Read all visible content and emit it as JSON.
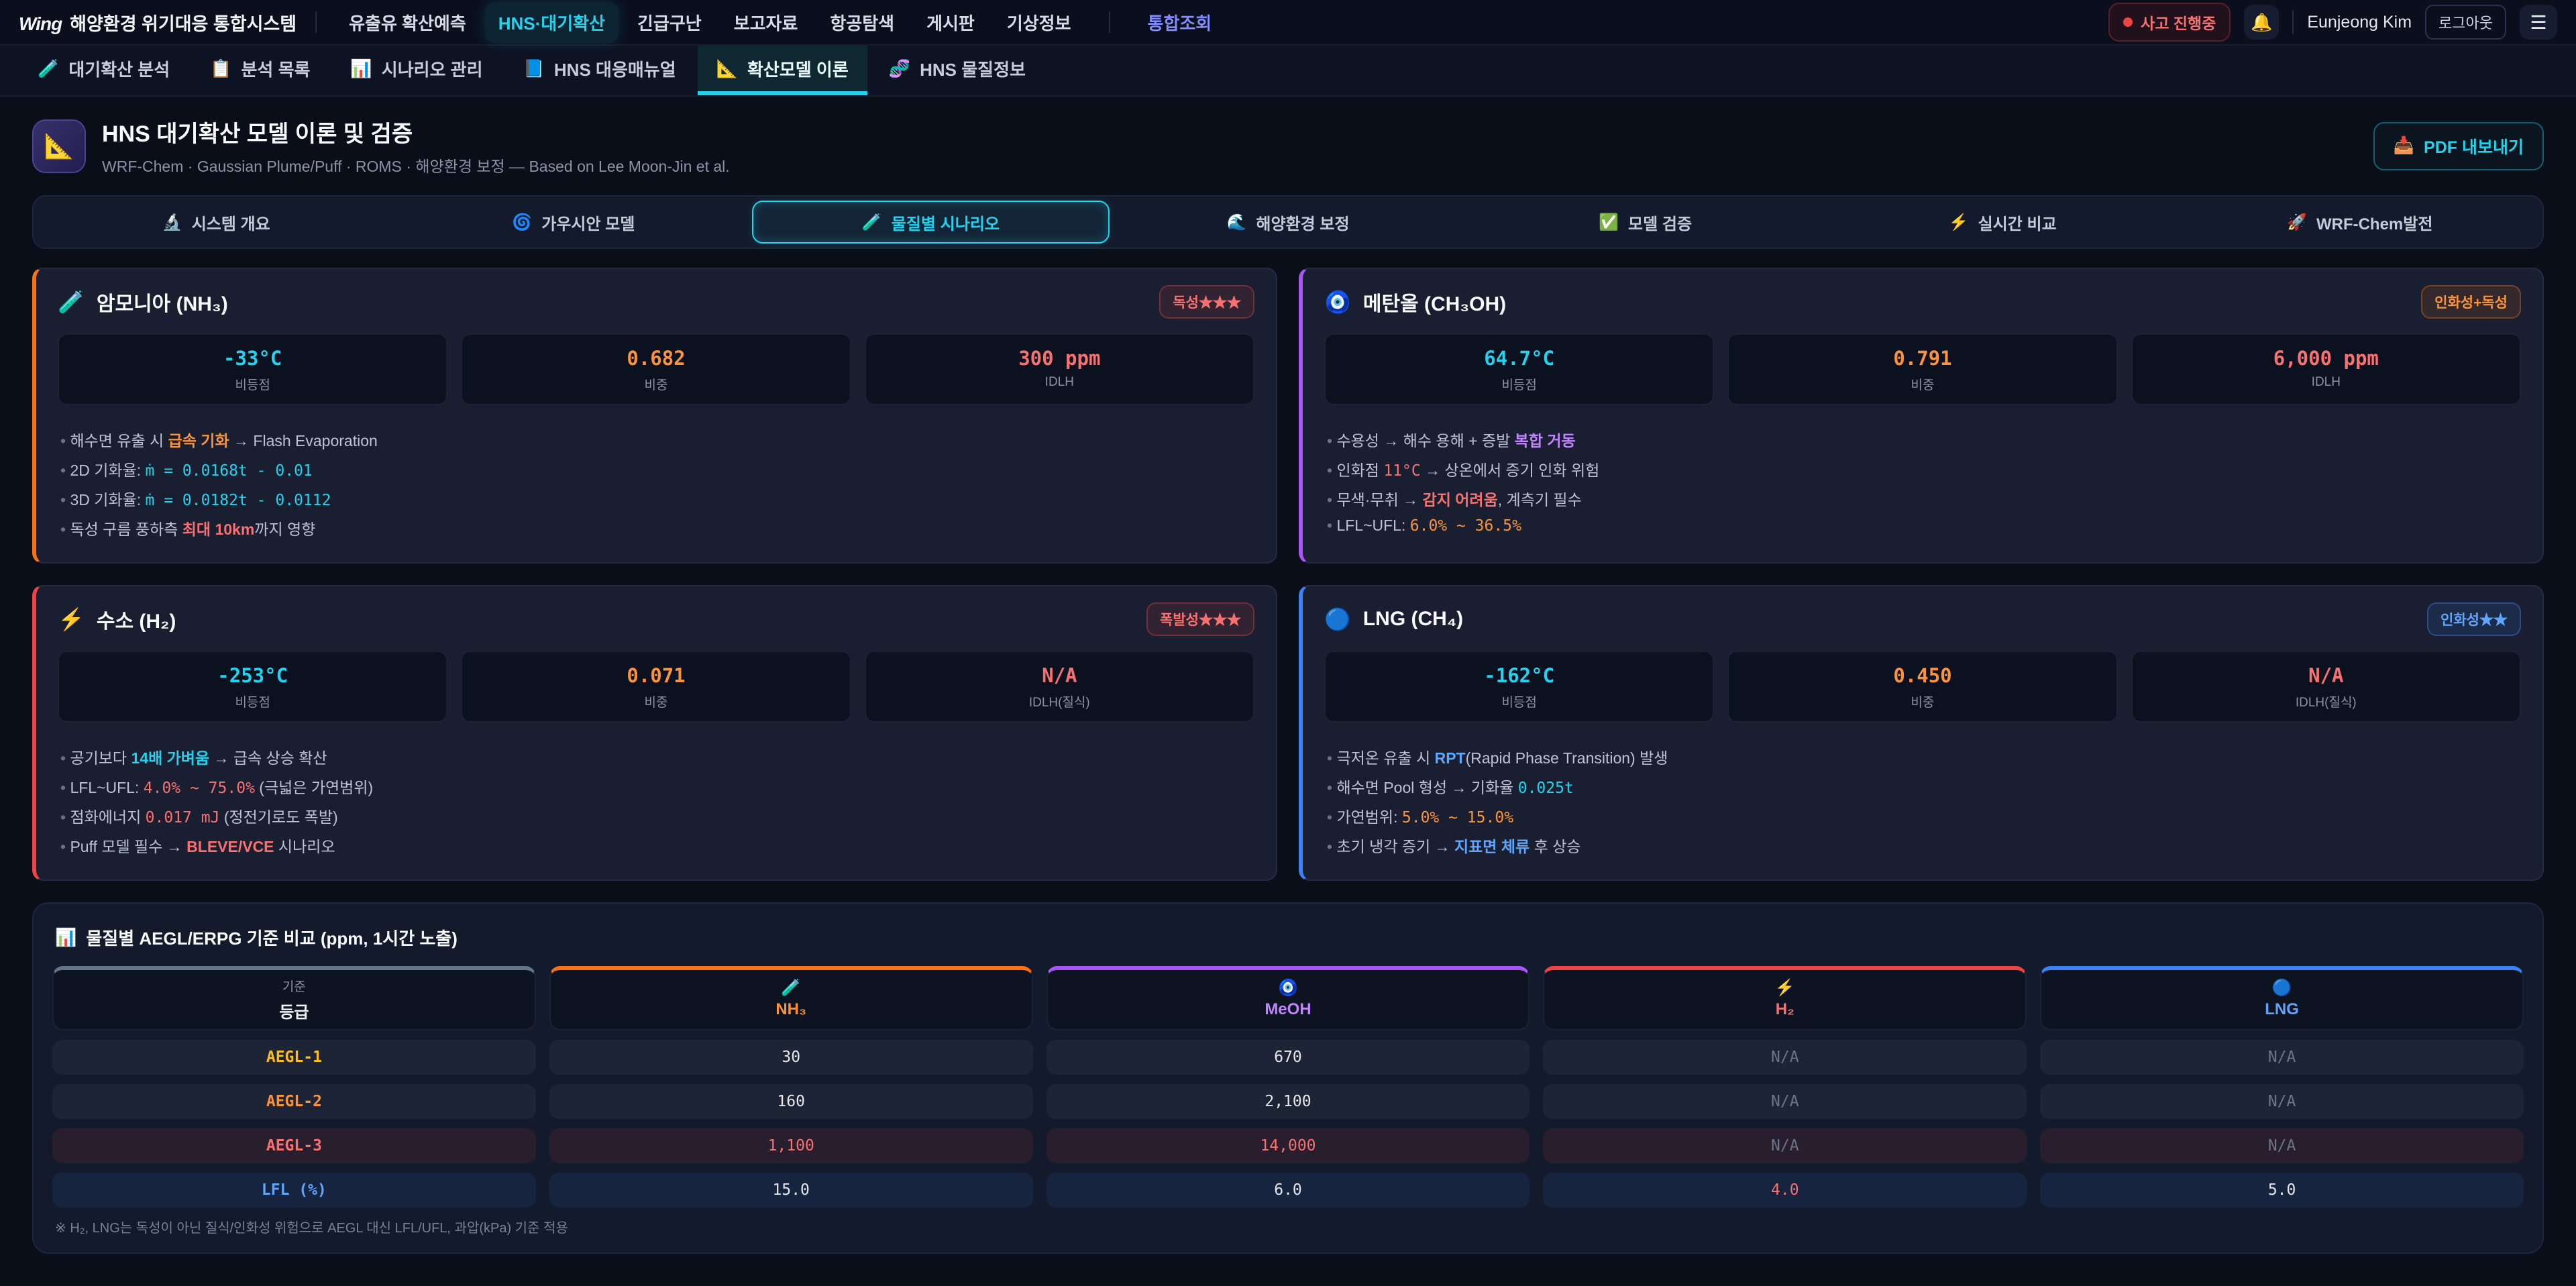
{
  "topnav": {
    "logo_mark": "Wing",
    "logo_title": "해양환경 위기대응 통합시스템",
    "items": [
      {
        "label": "유출유 확산예측"
      },
      {
        "label": "HNS·대기확산"
      },
      {
        "label": "긴급구난"
      },
      {
        "label": "보고자료"
      },
      {
        "label": "항공탐색"
      },
      {
        "label": "게시판"
      },
      {
        "label": "기상정보"
      },
      {
        "label": "통합조회"
      }
    ],
    "incident_badge": "사고 진행중",
    "bell_icon": "🔔",
    "user_name": "Eunjeong Kim",
    "logout_label": "로그아웃",
    "menu_icon": "☰"
  },
  "subnav": [
    {
      "icon": "🧪",
      "label": "대기확산 분석"
    },
    {
      "icon": "📋",
      "label": "분석 목록"
    },
    {
      "icon": "📊",
      "label": "시나리오 관리"
    },
    {
      "icon": "📘",
      "label": "HNS 대응매뉴얼"
    },
    {
      "icon": "📐",
      "label": "확산모델 이론"
    },
    {
      "icon": "🧬",
      "label": "HNS 물질정보"
    }
  ],
  "page": {
    "icon": "📐",
    "title": "HNS 대기확산 모델 이론 및 검증",
    "subtitle": "WRF-Chem · Gaussian Plume/Puff · ROMS · 해양환경 보정 — Based on Lee Moon-Jin et al.",
    "pdf_icon": "📥",
    "pdf_label": "PDF 내보내기"
  },
  "tabs": [
    {
      "icon": "🔬",
      "label": "시스템 개요"
    },
    {
      "icon": "🌀",
      "label": "가우시안 모델"
    },
    {
      "icon": "🧪",
      "label": "물질별 시나리오"
    },
    {
      "icon": "🌊",
      "label": "해양환경 보정"
    },
    {
      "icon": "✅",
      "label": "모델 검증"
    },
    {
      "icon": "⚡",
      "label": "실시간 비교"
    },
    {
      "icon": "🚀",
      "label": "WRF-Chem발전"
    }
  ],
  "colors": {
    "accent_cyan": "#22d3ee",
    "nh3_accent": "#f97316",
    "meoh_accent": "#a855f7",
    "h2_accent": "#ef4444",
    "lng_accent": "#3b82f6"
  },
  "cards": [
    {
      "icon": "🧪",
      "title": "암모니아 (NH₃)",
      "accent": "#f97316",
      "badge": "독성★★★",
      "badge_color": "#f87171",
      "badge_bg": "rgba(239,68,68,0.12)",
      "badge_border": "rgba(239,68,68,0.35)",
      "stats": [
        {
          "value": "-33°C",
          "label": "비등점",
          "color": "#22d3ee"
        },
        {
          "value": "0.682",
          "label": "비중",
          "color": "#fb923c"
        },
        {
          "value": "300 ppm",
          "label": "IDLH",
          "color": "#f87171"
        }
      ],
      "bullets": [
        [
          {
            "t": "해수면 유출 시 "
          },
          {
            "t": "급속 기화",
            "cls": "b or"
          },
          {
            "t": " → Flash Evaporation"
          }
        ],
        [
          {
            "t": "2D 기화율: "
          },
          {
            "t": "ṁ = 0.0168t - 0.01",
            "cls": "m cy"
          }
        ],
        [
          {
            "t": "3D 기화율: "
          },
          {
            "t": "ṁ = 0.0182t - 0.0112",
            "cls": "m cy"
          }
        ],
        [
          {
            "t": "독성 구름 풍하측 "
          },
          {
            "t": "최대 10km",
            "cls": "b rd"
          },
          {
            "t": "까지 영향"
          }
        ]
      ]
    },
    {
      "icon": "🧿",
      "title": "메탄올 (CH₃OH)",
      "accent": "#a855f7",
      "badge": "인화성+독성",
      "badge_color": "#fb923c",
      "badge_bg": "rgba(249,115,22,0.12)",
      "badge_border": "rgba(249,115,22,0.35)",
      "stats": [
        {
          "value": "64.7°C",
          "label": "비등점",
          "color": "#22d3ee"
        },
        {
          "value": "0.791",
          "label": "비중",
          "color": "#fb923c"
        },
        {
          "value": "6,000 ppm",
          "label": "IDLH",
          "color": "#f87171"
        }
      ],
      "bullets": [
        [
          {
            "t": "수용성 → 해수 용해 + 증발 "
          },
          {
            "t": "복합 거동",
            "cls": "b pu"
          }
        ],
        [
          {
            "t": "인화점 "
          },
          {
            "t": "11°C",
            "cls": "m rd"
          },
          {
            "t": " → 상온에서 증기 인화 위험"
          }
        ],
        [
          {
            "t": "무색·무취 → "
          },
          {
            "t": "감지 어려움",
            "cls": "b rd"
          },
          {
            "t": ", 계측기 필수"
          }
        ],
        [
          {
            "t": "LFL~UFL: "
          },
          {
            "t": "6.0% ~ 36.5%",
            "cls": "m or"
          }
        ]
      ]
    },
    {
      "icon": "⚡",
      "title": "수소 (H₂)",
      "accent": "#ef4444",
      "badge": "폭발성★★★",
      "badge_color": "#f87171",
      "badge_bg": "rgba(239,68,68,0.12)",
      "badge_border": "rgba(239,68,68,0.35)",
      "stats": [
        {
          "value": "-253°C",
          "label": "비등점",
          "color": "#22d3ee"
        },
        {
          "value": "0.071",
          "label": "비중",
          "color": "#fb923c"
        },
        {
          "value": "N/A",
          "label": "IDLH(질식)",
          "color": "#f87171"
        }
      ],
      "bullets": [
        [
          {
            "t": "공기보다 "
          },
          {
            "t": "14배 가벼움",
            "cls": "b cy"
          },
          {
            "t": " → 급속 상승 확산"
          }
        ],
        [
          {
            "t": "LFL~UFL: "
          },
          {
            "t": "4.0% ~ 75.0%",
            "cls": "m rd"
          },
          {
            "t": " (극넓은 가연범위)"
          }
        ],
        [
          {
            "t": "점화에너지 "
          },
          {
            "t": "0.017 mJ",
            "cls": "m rd"
          },
          {
            "t": " (정전기로도 폭발)"
          }
        ],
        [
          {
            "t": "Puff 모델 필수 → "
          },
          {
            "t": "BLEVE/VCE",
            "cls": "b rd"
          },
          {
            "t": " 시나리오"
          }
        ]
      ]
    },
    {
      "icon": "🔵",
      "title": "LNG (CH₄)",
      "accent": "#3b82f6",
      "badge": "인화성★★",
      "badge_color": "#60a5fa",
      "badge_bg": "rgba(59,130,246,0.12)",
      "badge_border": "rgba(59,130,246,0.40)",
      "stats": [
        {
          "value": "-162°C",
          "label": "비등점",
          "color": "#22d3ee"
        },
        {
          "value": "0.450",
          "label": "비중",
          "color": "#fb923c"
        },
        {
          "value": "N/A",
          "label": "IDLH(질식)",
          "color": "#f87171"
        }
      ],
      "bullets": [
        [
          {
            "t": "극저온 유출 시 "
          },
          {
            "t": "RPT",
            "cls": "b bl"
          },
          {
            "t": "(Rapid Phase Transition) 발생"
          }
        ],
        [
          {
            "t": "해수면 Pool 형성 → 기화율 "
          },
          {
            "t": "0.025t",
            "cls": "m cy"
          }
        ],
        [
          {
            "t": "가연범위: "
          },
          {
            "t": "5.0% ~ 15.0%",
            "cls": "m or"
          }
        ],
        [
          {
            "t": "초기 냉각 증기 → "
          },
          {
            "t": "지표면 체류",
            "cls": "b bl"
          },
          {
            "t": " 후 상승"
          }
        ]
      ]
    }
  ],
  "table": {
    "title_icon": "📊",
    "title": "물질별 AEGL/ERPG 기준 비교 (ppm, 1시간 노출)",
    "columns": [
      {
        "top": "기준",
        "label": "등급",
        "icon": "",
        "color": "#f1f5f9",
        "border": "#64748b"
      },
      {
        "top": "",
        "label": "NH₃",
        "icon": "🧪",
        "color": "#fb923c",
        "border": "#f97316"
      },
      {
        "top": "",
        "label": "MeOH",
        "icon": "🧿",
        "color": "#c084fc",
        "border": "#a855f7"
      },
      {
        "top": "",
        "label": "H₂",
        "icon": "⚡",
        "color": "#f87171",
        "border": "#ef4444"
      },
      {
        "top": "",
        "label": "LNG",
        "icon": "🔵",
        "color": "#60a5fa",
        "border": "#3b82f6"
      }
    ],
    "rows": [
      {
        "label": "AEGL-1",
        "color": "#fbbf24",
        "bg": "rgba(148,163,184,0.08)",
        "values": [
          {
            "v": "30"
          },
          {
            "v": "670"
          },
          {
            "v": "N/A",
            "na": true
          },
          {
            "v": "N/A",
            "na": true
          }
        ]
      },
      {
        "label": "AEGL-2",
        "color": "#fb923c",
        "bg": "rgba(148,163,184,0.08)",
        "values": [
          {
            "v": "160"
          },
          {
            "v": "2,100"
          },
          {
            "v": "N/A",
            "na": true
          },
          {
            "v": "N/A",
            "na": true
          }
        ]
      },
      {
        "label": "AEGL-3",
        "color": "#f87171",
        "bg": "rgba(239,68,68,0.10)",
        "values": [
          {
            "v": "1,100",
            "red": true
          },
          {
            "v": "14,000",
            "red": true
          },
          {
            "v": "N/A",
            "na": true
          },
          {
            "v": "N/A",
            "na": true
          }
        ]
      },
      {
        "label": "LFL (%)",
        "color": "#60a5fa",
        "bg": "rgba(59,130,246,0.10)",
        "values": [
          {
            "v": "15.0"
          },
          {
            "v": "6.0"
          },
          {
            "v": "4.0",
            "red": true
          },
          {
            "v": "5.0"
          }
        ]
      }
    ],
    "note": "※ H₂, LNG는 독성이 아닌 질식/인화성 위험으로 AEGL 대신 LFL/UFL, 과압(kPa) 기준 적용"
  }
}
